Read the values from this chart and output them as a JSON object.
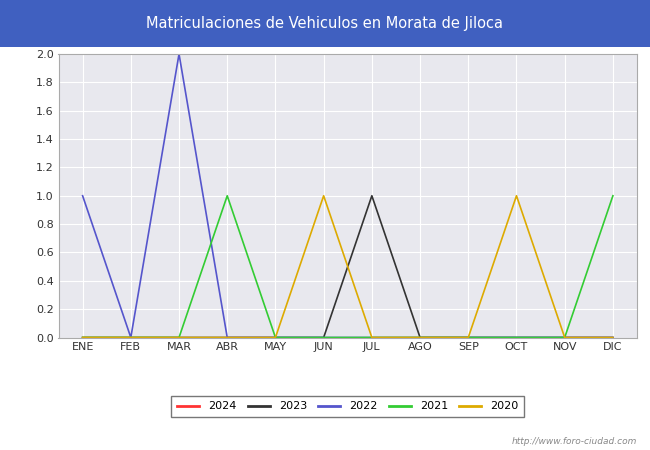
{
  "title": "Matriculaciones de Vehiculos en Morata de Jiloca",
  "title_bg_color": "#4060c0",
  "title_text_color": "#ffffff",
  "plot_bg_color": "#e8e8ee",
  "fig_bg_color": "#ffffff",
  "months": [
    "ENE",
    "FEB",
    "MAR",
    "ABR",
    "MAY",
    "JUN",
    "JUL",
    "AGO",
    "SEP",
    "OCT",
    "NOV",
    "DIC"
  ],
  "series": {
    "2024": {
      "color": "#ff3333",
      "data": [
        0,
        0,
        0,
        0,
        0,
        0,
        0,
        0,
        0,
        0,
        0,
        0
      ]
    },
    "2023": {
      "color": "#333333",
      "data": [
        0,
        0,
        0,
        0,
        0,
        0,
        1,
        0,
        0,
        0,
        0,
        0
      ]
    },
    "2022": {
      "color": "#5555cc",
      "data": [
        1,
        0,
        2,
        0,
        0,
        0,
        0,
        0,
        0,
        0,
        0,
        0
      ]
    },
    "2021": {
      "color": "#33cc33",
      "data": [
        0,
        0,
        0,
        1,
        0,
        0,
        0,
        0,
        0,
        0,
        0,
        1
      ]
    },
    "2020": {
      "color": "#ddaa00",
      "data": [
        0,
        0,
        0,
        0,
        0,
        1,
        0,
        0,
        0,
        1,
        0,
        0
      ]
    }
  },
  "ylim": [
    0,
    2.0
  ],
  "yticks": [
    0.0,
    0.2,
    0.4,
    0.6,
    0.8,
    1.0,
    1.2,
    1.4,
    1.6,
    1.8,
    2.0
  ],
  "watermark": "http://www.foro-ciudad.com",
  "legend_order": [
    "2024",
    "2023",
    "2022",
    "2021",
    "2020"
  ]
}
